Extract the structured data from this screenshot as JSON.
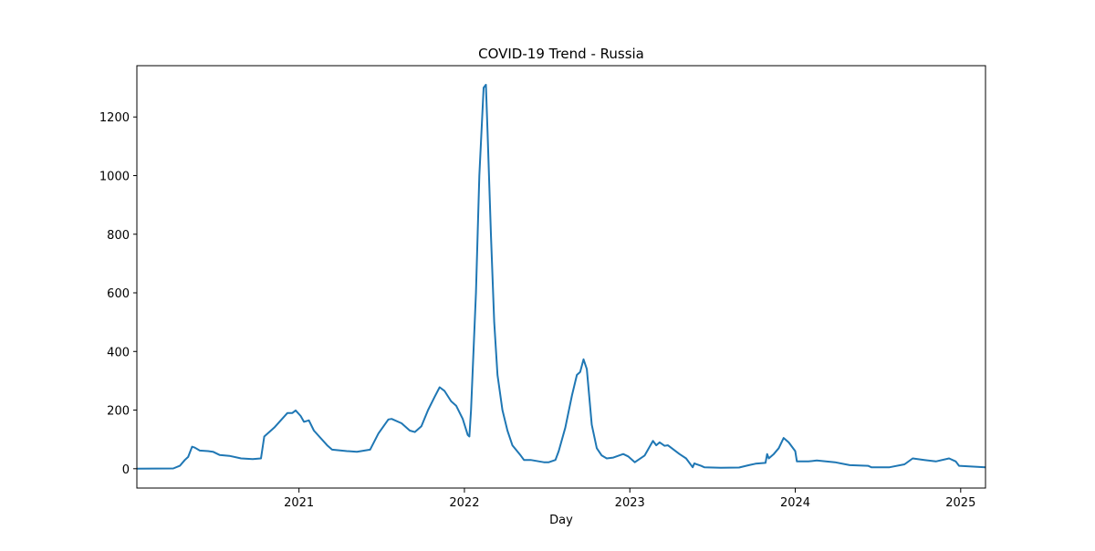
{
  "chart_data": {
    "type": "line",
    "title": "COVID-19 Trend - Russia",
    "x_label": "Day",
    "x": [
      2020.02,
      2020.24,
      2020.28,
      2020.31,
      2020.33,
      2020.354,
      2020.37,
      2020.4,
      2020.45,
      2020.48,
      2020.52,
      2020.58,
      2020.65,
      2020.72,
      2020.77,
      2020.79,
      2020.85,
      2020.93,
      2020.96,
      2020.98,
      2021.01,
      2021.03,
      2021.06,
      2021.09,
      2021.17,
      2021.2,
      2021.29,
      2021.35,
      2021.43,
      2021.48,
      2021.54,
      2021.56,
      2021.62,
      2021.67,
      2021.7,
      2021.74,
      2021.78,
      2021.82,
      2021.85,
      2021.88,
      2021.92,
      2021.95,
      2021.99,
      2022.02,
      2022.03,
      2022.04,
      2022.07,
      2022.09,
      2022.116,
      2022.13,
      2022.14,
      2022.16,
      2022.18,
      2022.2,
      2022.23,
      2022.26,
      2022.29,
      2022.34,
      2022.36,
      2022.4,
      2022.48,
      2022.51,
      2022.55,
      2022.57,
      2022.61,
      2022.65,
      2022.68,
      2022.7,
      2022.72,
      2022.74,
      2022.77,
      2022.8,
      2022.83,
      2022.86,
      2022.9,
      2022.96,
      2022.99,
      2023.03,
      2023.09,
      2023.14,
      2023.16,
      2023.18,
      2023.21,
      2023.23,
      2023.3,
      2023.34,
      2023.38,
      2023.39,
      2023.43,
      2023.45,
      2023.55,
      2023.66,
      2023.72,
      2023.76,
      2023.82,
      2023.83,
      2023.84,
      2023.87,
      2023.9,
      2023.93,
      2023.96,
      2024.0,
      2024.01,
      2024.08,
      2024.13,
      2024.24,
      2024.33,
      2024.44,
      2024.46,
      2024.57,
      2024.66,
      2024.71,
      2024.78,
      2024.85,
      2024.93,
      2024.97,
      2024.99,
      2025.15
    ],
    "series": [
      {
        "color": "#1f77b4",
        "values": [
          0,
          1,
          10,
          30,
          40,
          75,
          72,
          62,
          60,
          58,
          47,
          44,
          35,
          33,
          35,
          110,
          140,
          190,
          190,
          199,
          180,
          160,
          165,
          130,
          80,
          65,
          60,
          58,
          65,
          120,
          168,
          170,
          155,
          130,
          125,
          145,
          200,
          245,
          278,
          265,
          230,
          215,
          170,
          115,
          110,
          200,
          600,
          1000,
          1300,
          1310,
          1150,
          800,
          500,
          320,
          200,
          130,
          80,
          45,
          30,
          30,
          22,
          22,
          30,
          60,
          140,
          250,
          320,
          330,
          373,
          340,
          150,
          70,
          45,
          35,
          38,
          50,
          42,
          22,
          45,
          95,
          80,
          90,
          78,
          80,
          50,
          35,
          5,
          18,
          10,
          5,
          3,
          4,
          12,
          17,
          20,
          50,
          35,
          50,
          70,
          105,
          90,
          60,
          25,
          25,
          28,
          22,
          12,
          10,
          5,
          5,
          15,
          35,
          30,
          25,
          35,
          25,
          10,
          5
        ]
      }
    ],
    "xlim": [
      2020.02,
      2025.15
    ],
    "xticks": [
      2021,
      2022,
      2023,
      2024,
      2025
    ],
    "ylim": [
      -66,
      1375
    ],
    "yticks": [
      0,
      200,
      400,
      600,
      800,
      1000,
      1200
    ]
  }
}
